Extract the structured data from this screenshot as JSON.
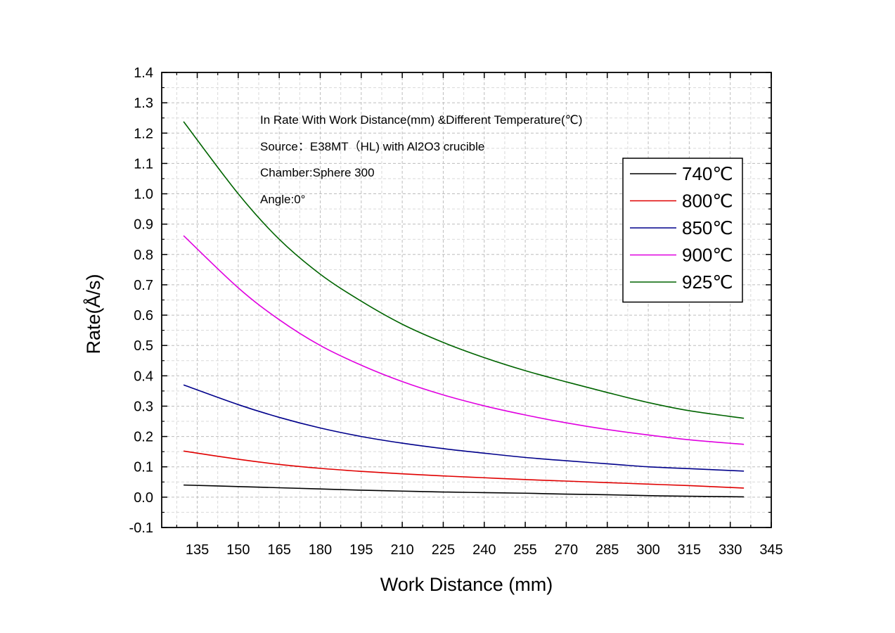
{
  "chart_data": {
    "type": "line",
    "xlabel": "Work Distance (mm)",
    "ylabel": "Rate(Å/s)",
    "xlim": [
      122,
      345
    ],
    "ylim": [
      -0.1,
      1.4
    ],
    "xticks": [
      135,
      150,
      165,
      180,
      195,
      210,
      225,
      240,
      255,
      270,
      285,
      300,
      315,
      330,
      345
    ],
    "yticks": [
      -0.1,
      0.0,
      0.1,
      0.2,
      0.3,
      0.4,
      0.5,
      0.6,
      0.7,
      0.8,
      0.9,
      1.0,
      1.1,
      1.2,
      1.3,
      1.4
    ],
    "grid": true,
    "legend_position": "top-right",
    "annotations": [
      "In Rate With Work Distance(mm) &Different Temperature(℃)",
      "Source：E38MT（HL) with Al2O3 crucible",
      "Chamber:Sphere 300",
      "Angle:0°"
    ],
    "x": [
      130,
      150,
      165,
      180,
      195,
      210,
      225,
      240,
      255,
      270,
      285,
      300,
      315,
      335
    ],
    "series": [
      {
        "name": "740℃",
        "color": "#000000",
        "values": [
          0.04,
          0.035,
          0.031,
          0.027,
          0.023,
          0.02,
          0.017,
          0.015,
          0.013,
          0.01,
          0.008,
          0.005,
          0.003,
          0.001
        ]
      },
      {
        "name": "800℃",
        "color": "#e00000",
        "values": [
          0.152,
          0.125,
          0.108,
          0.095,
          0.085,
          0.077,
          0.07,
          0.064,
          0.058,
          0.053,
          0.048,
          0.043,
          0.038,
          0.03
        ]
      },
      {
        "name": "850℃",
        "color": "#00008b",
        "values": [
          0.37,
          0.305,
          0.263,
          0.228,
          0.2,
          0.178,
          0.16,
          0.145,
          0.131,
          0.12,
          0.11,
          0.1,
          0.094,
          0.086
        ]
      },
      {
        "name": "900℃",
        "color": "#e000e0",
        "values": [
          0.862,
          0.69,
          0.585,
          0.5,
          0.435,
          0.381,
          0.337,
          0.301,
          0.271,
          0.245,
          0.223,
          0.205,
          0.189,
          0.174
        ]
      },
      {
        "name": "925℃",
        "color": "#006400",
        "values": [
          1.238,
          1.0,
          0.85,
          0.735,
          0.646,
          0.57,
          0.51,
          0.46,
          0.417,
          0.38,
          0.345,
          0.312,
          0.285,
          0.26
        ]
      }
    ]
  }
}
